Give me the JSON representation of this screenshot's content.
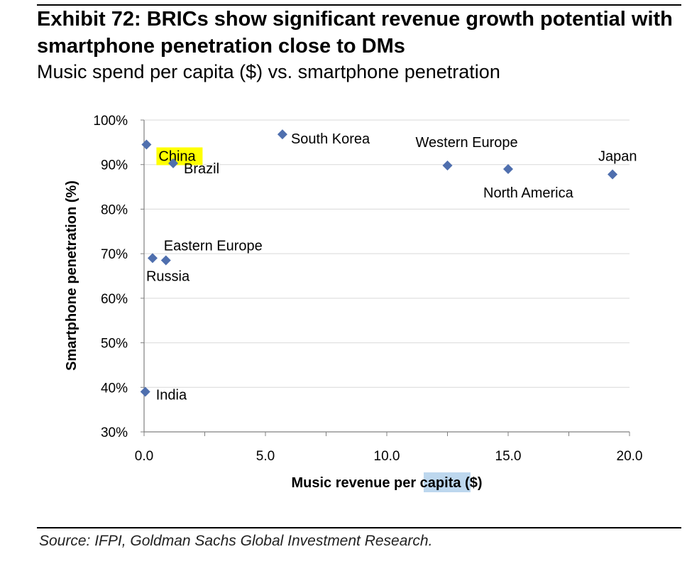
{
  "header": {
    "title": "Exhibit 72: BRICs show significant revenue growth potential with smartphone penetration close to DMs",
    "subtitle": "Music spend per capita ($) vs. smartphone penetration"
  },
  "footer": {
    "source": "Source: IFPI, Goldman Sachs Global Investment Research."
  },
  "colors": {
    "marker": "#4F6FAE",
    "grid": "#d9d9d9",
    "highlight_china": "#FFFF00",
    "highlight_capita": "#BDD7EE"
  },
  "chart_data": {
    "type": "scatter",
    "xlabel": "Music revenue per capita ($)",
    "ylabel": "Smartphone penetration (%)",
    "xlim": [
      0,
      20
    ],
    "ylim": [
      30,
      100
    ],
    "x_ticks": [
      "0.0",
      "5.0",
      "10.0",
      "15.0",
      "20.0"
    ],
    "y_ticks": [
      "30%",
      "40%",
      "50%",
      "60%",
      "70%",
      "80%",
      "90%",
      "100%"
    ],
    "grid": "horizontal",
    "points": [
      {
        "label": "China",
        "x": 0.1,
        "y": 94.5,
        "highlight": true
      },
      {
        "label": "Brazil",
        "x": 1.2,
        "y": 90.3
      },
      {
        "label": "South Korea",
        "x": 5.7,
        "y": 96.8
      },
      {
        "label": "Western Europe",
        "x": 12.5,
        "y": 89.8
      },
      {
        "label": "North America",
        "x": 15.0,
        "y": 89.0
      },
      {
        "label": "Japan",
        "x": 19.3,
        "y": 87.8
      },
      {
        "label": "Eastern Europe",
        "x": 0.9,
        "y": 68.5
      },
      {
        "label": "Russia",
        "x": 0.35,
        "y": 69.0
      },
      {
        "label": "India",
        "x": 0.05,
        "y": 39.0
      }
    ]
  }
}
